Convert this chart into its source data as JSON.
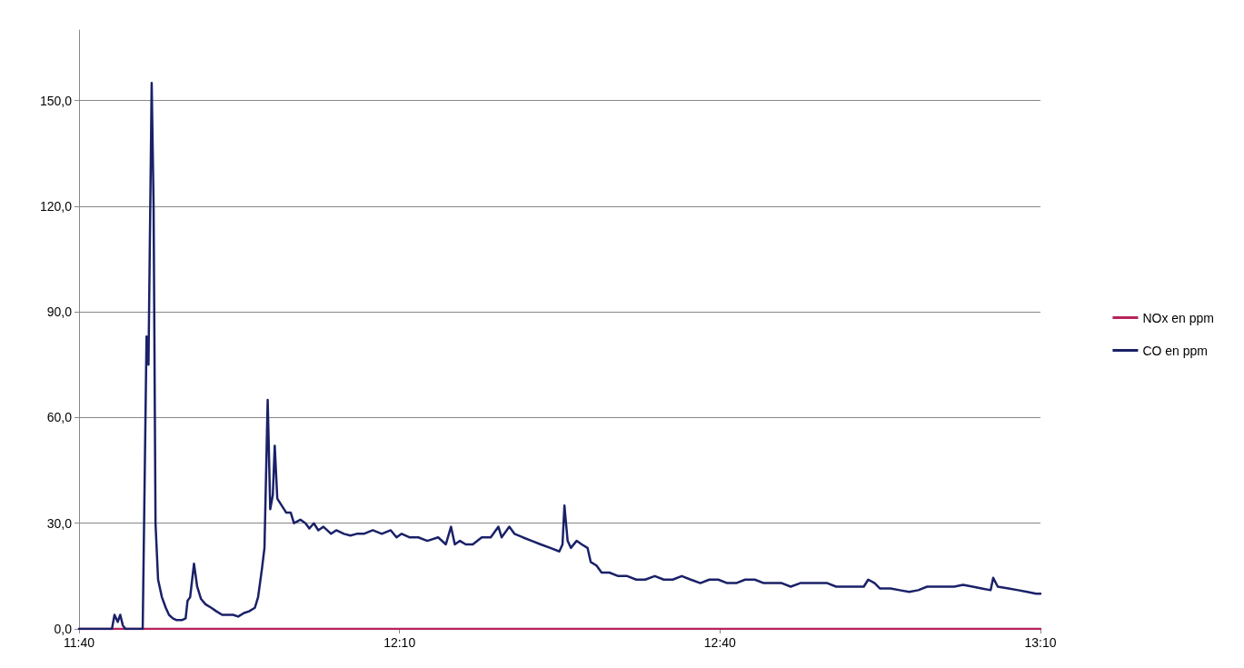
{
  "chart_data": {
    "type": "line",
    "xlim": [
      11.6667,
      13.1667
    ],
    "xticks": [
      {
        "value": 11.6667,
        "label": "11:40"
      },
      {
        "value": 12.1667,
        "label": "12:10"
      },
      {
        "value": 12.6667,
        "label": "12:40"
      },
      {
        "value": 13.1667,
        "label": "13:10"
      }
    ],
    "ylim": [
      0,
      170
    ],
    "yticks": [
      {
        "value": 0,
        "label": "0,0"
      },
      {
        "value": 30,
        "label": "30,0"
      },
      {
        "value": 60,
        "label": "60,0"
      },
      {
        "value": 90,
        "label": "90,0"
      },
      {
        "value": 120,
        "label": "120,0"
      },
      {
        "value": 150,
        "label": "150,0"
      }
    ],
    "grid": "y",
    "legend": "right",
    "marker": "none",
    "line_style": "solid",
    "series": [
      {
        "name": "NOx en ppm",
        "color": "#b5245c",
        "x": [
          11.6667,
          13.1667
        ],
        "values": [
          0,
          0
        ]
      },
      {
        "name": "CO en ppm",
        "color": "#1a2168",
        "x": [
          11.6667,
          11.718,
          11.722,
          11.727,
          11.731,
          11.735,
          11.739,
          11.766,
          11.772,
          11.775,
          11.78,
          11.783,
          11.786,
          11.79,
          11.796,
          11.802,
          11.807,
          11.813,
          11.819,
          11.827,
          11.833,
          11.836,
          11.84,
          11.846,
          11.851,
          11.857,
          11.864,
          11.873,
          11.881,
          11.89,
          11.898,
          11.907,
          11.915,
          11.924,
          11.932,
          11.941,
          11.946,
          11.952,
          11.956,
          11.961,
          11.965,
          11.969,
          11.972,
          11.976,
          11.983,
          11.99,
          11.997,
          12.002,
          12.012,
          12.02,
          12.026,
          12.033,
          12.04,
          12.048,
          12.06,
          12.068,
          12.08,
          12.09,
          12.1,
          12.111,
          12.125,
          12.139,
          12.153,
          12.162,
          12.17,
          12.182,
          12.196,
          12.21,
          12.227,
          12.239,
          12.247,
          12.253,
          12.261,
          12.27,
          12.281,
          12.295,
          12.309,
          12.321,
          12.326,
          12.338,
          12.346,
          12.359,
          12.373,
          12.387,
          12.402,
          12.416,
          12.421,
          12.424,
          12.429,
          12.434,
          12.443,
          12.451,
          12.46,
          12.465,
          12.474,
          12.482,
          12.494,
          12.508,
          12.522,
          12.536,
          12.55,
          12.565,
          12.579,
          12.593,
          12.607,
          12.621,
          12.636,
          12.65,
          12.664,
          12.678,
          12.692,
          12.706,
          12.721,
          12.735,
          12.749,
          12.763,
          12.777,
          12.792,
          12.806,
          12.82,
          12.834,
          12.848,
          12.862,
          12.877,
          12.891,
          12.898,
          12.908,
          12.916,
          12.933,
          12.947,
          12.962,
          12.976,
          12.99,
          13.004,
          13.018,
          13.032,
          13.046,
          13.061,
          13.075,
          13.089,
          13.093,
          13.1,
          13.117,
          13.132,
          13.146,
          13.16,
          13.1667
        ],
        "values": [
          0,
          0,
          4,
          2,
          4,
          1,
          0,
          0,
          83,
          75,
          155,
          120,
          30,
          14,
          9,
          6,
          4,
          3,
          2.5,
          2.5,
          3,
          8,
          9,
          18.5,
          12,
          8.5,
          7,
          6,
          5,
          4,
          4,
          4,
          3.5,
          4.5,
          5,
          6,
          9,
          17,
          23,
          65,
          34,
          38,
          52,
          37,
          35,
          33,
          33,
          30,
          31,
          30,
          28.5,
          30,
          28,
          29,
          27,
          28,
          27,
          26.5,
          27,
          27,
          28,
          27,
          28,
          26,
          27,
          26,
          26,
          25,
          26,
          24,
          29,
          24,
          25,
          24,
          24,
          26,
          26,
          29,
          26,
          29,
          27,
          26,
          25,
          24,
          23,
          22,
          24,
          35,
          25,
          23,
          25,
          24,
          23,
          19,
          18,
          16,
          16,
          15,
          15,
          14,
          14,
          15,
          14,
          14,
          15,
          14,
          13,
          14,
          14,
          13,
          13,
          14,
          14,
          13,
          13,
          13,
          12,
          13,
          13,
          13,
          13,
          12,
          12,
          12,
          12,
          14,
          13,
          11.5,
          11.5,
          11,
          10.5,
          11,
          12,
          12,
          12,
          12,
          12.5,
          12,
          11.5,
          11,
          14.5,
          12,
          11.5,
          11,
          10.5,
          10,
          10
        ]
      }
    ]
  }
}
